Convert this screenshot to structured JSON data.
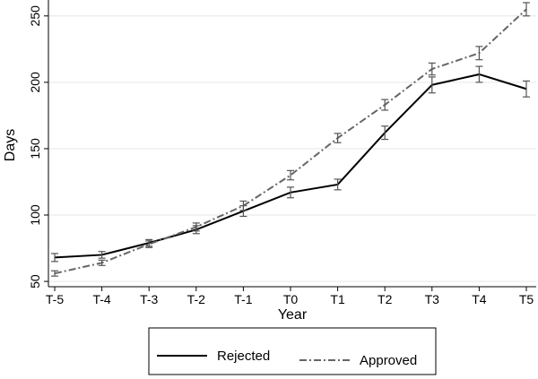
{
  "chart_data": {
    "type": "line",
    "title": "",
    "xlabel": "Year",
    "ylabel": "Days",
    "categories": [
      "T-5",
      "T-4",
      "T-3",
      "T-2",
      "T-1",
      "T0",
      "T1",
      "T2",
      "T3",
      "T4",
      "T5"
    ],
    "ylim": [
      46,
      262
    ],
    "yticks": [
      50,
      100,
      150,
      200,
      250
    ],
    "grid": "horizontal",
    "legend_position": "bottom",
    "series": [
      {
        "name": "Rejected",
        "style": "solid",
        "color": "#000000",
        "values": [
          68,
          70,
          79,
          89,
          103,
          117,
          123,
          162,
          198,
          206,
          195
        ],
        "errors": [
          3,
          2.5,
          2.5,
          3,
          4,
          4,
          4,
          5,
          6,
          6,
          6
        ]
      },
      {
        "name": "Approved",
        "style": "dash-dot",
        "color": "#666666",
        "values": [
          56,
          64,
          78,
          91,
          107,
          130,
          158,
          183,
          210,
          222,
          255
        ],
        "errors": [
          2,
          2,
          2.5,
          3,
          3.5,
          3.5,
          3.5,
          4,
          4.5,
          5,
          5
        ]
      }
    ]
  }
}
